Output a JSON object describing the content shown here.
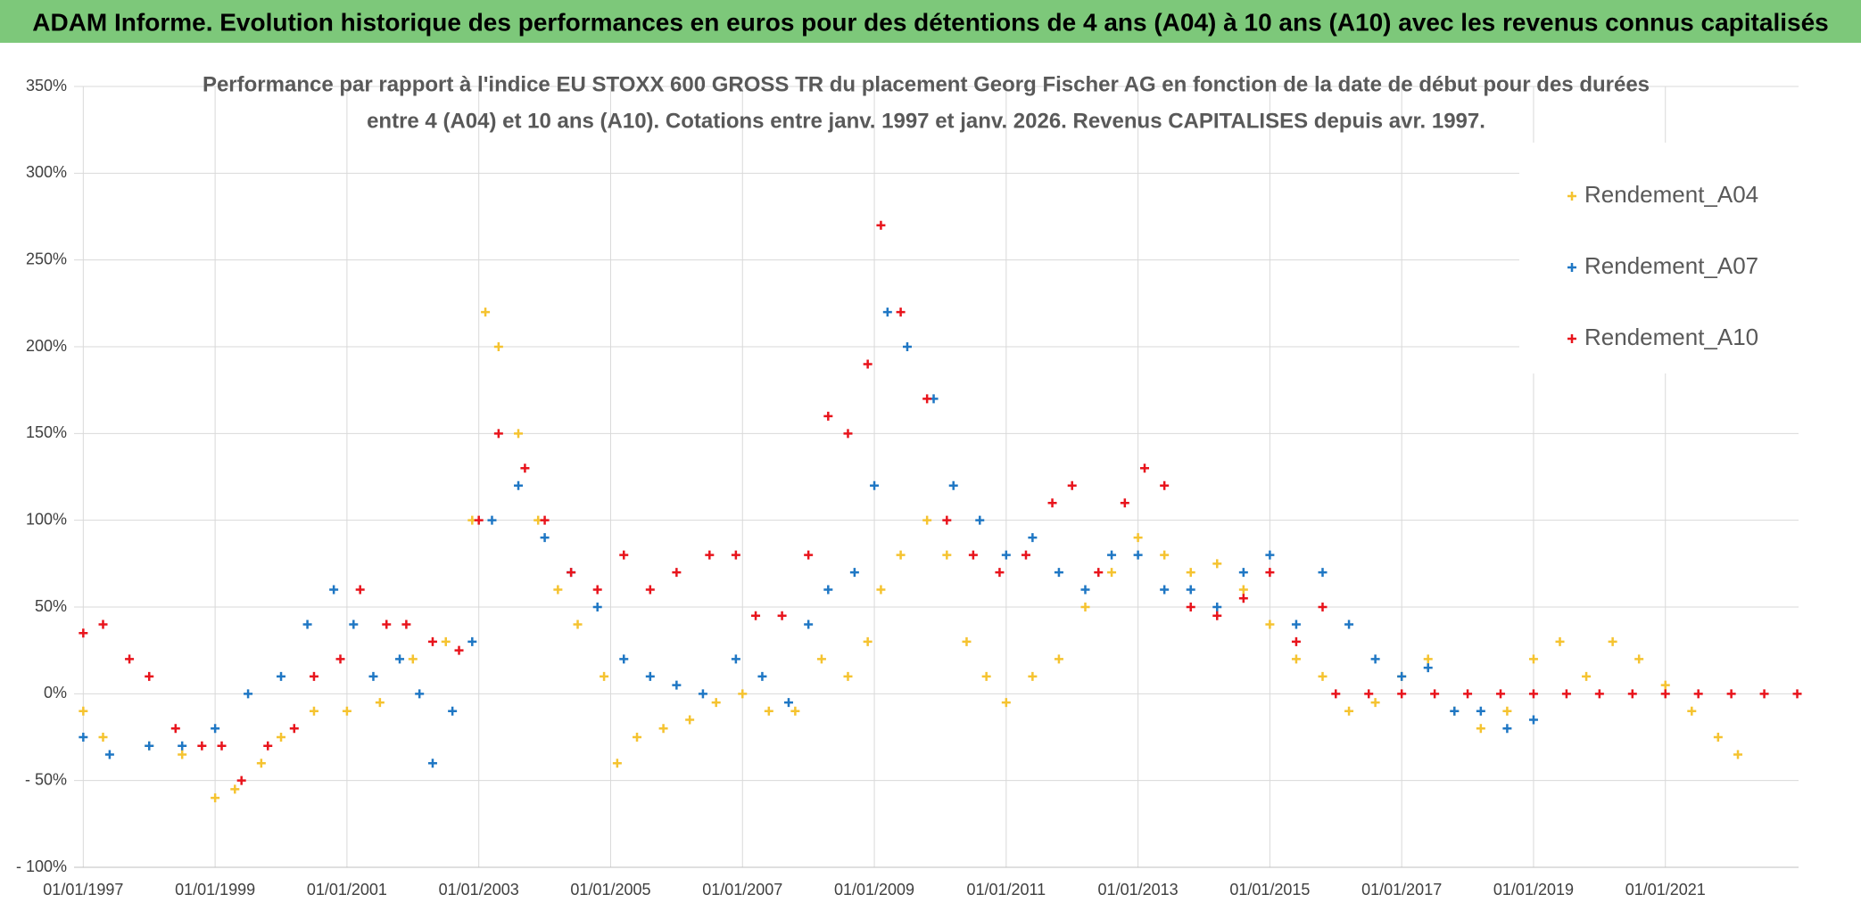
{
  "chart_data": {
    "type": "scatter",
    "banner": "ADAM Informe. Evolution historique des performances en euros pour des détentions de 4 ans (A04) à 10 ans (A10) avec les revenus connus capitalisés",
    "title": [
      "Performance par rapport à l'indice EU STOXX 600 GROSS TR  du placement Georg Fischer AG en fonction de la date de début pour des durées",
      "entre 4 (A04) et 10 ans (A10). Cotations entre janv. 1997 et janv. 2026. Revenus CAPITALISES depuis avr. 1997."
    ],
    "xlim": [
      1996.86,
      2023.02
    ],
    "xticks": [
      {
        "value": 1997,
        "label": "01/01/1997"
      },
      {
        "value": 1999,
        "label": "01/01/1999"
      },
      {
        "value": 2001,
        "label": "01/01/2001"
      },
      {
        "value": 2003,
        "label": "01/01/2003"
      },
      {
        "value": 2005,
        "label": "01/01/2005"
      },
      {
        "value": 2007,
        "label": "01/01/2007"
      },
      {
        "value": 2009,
        "label": "01/01/2009"
      },
      {
        "value": 2011,
        "label": "01/01/2011"
      },
      {
        "value": 2013,
        "label": "01/01/2013"
      },
      {
        "value": 2015,
        "label": "01/01/2015"
      },
      {
        "value": 2017,
        "label": "01/01/2017"
      },
      {
        "value": 2019,
        "label": "01/01/2019"
      },
      {
        "value": 2021,
        "label": "01/01/2021"
      }
    ],
    "ylim": [
      -100,
      350
    ],
    "yticks": [
      {
        "value": -100,
        "label": "- 100%"
      },
      {
        "value": -50,
        "label": "- 50%"
      },
      {
        "value": 0,
        "label": "0%"
      },
      {
        "value": 50,
        "label": "50%"
      },
      {
        "value": 100,
        "label": "100%"
      },
      {
        "value": 150,
        "label": "150%"
      },
      {
        "value": 200,
        "label": "200%"
      },
      {
        "value": 250,
        "label": "250%"
      },
      {
        "value": 300,
        "label": "300%"
      },
      {
        "value": 350,
        "label": "350%"
      }
    ],
    "grid": true,
    "legend": "upper right",
    "series": [
      {
        "name": "Rendement_A04",
        "color": "#f5c330",
        "x": [
          1997,
          1997.3,
          1998,
          1998.5,
          1999,
          1999.3,
          1999.7,
          2000,
          2000.5,
          2001,
          2001.5,
          2002,
          2002.5,
          2002.9,
          2003.1,
          2003.3,
          2003.6,
          2003.9,
          2004.2,
          2004.5,
          2004.9,
          2005.1,
          2005.4,
          2005.8,
          2006.2,
          2006.6,
          2007,
          2007.4,
          2007.8,
          2008.2,
          2008.6,
          2008.9,
          2009.1,
          2009.4,
          2009.8,
          2010.1,
          2010.4,
          2010.7,
          2011,
          2011.4,
          2011.8,
          2012.2,
          2012.6,
          2013,
          2013.4,
          2013.8,
          2014.2,
          2014.6,
          2015,
          2015.4,
          2015.8,
          2016.2,
          2016.6,
          2017,
          2017.4,
          2017.8,
          2018.2,
          2018.6,
          2019,
          2019.4,
          2019.8,
          2020.2,
          2020.6,
          2021,
          2021.4,
          2021.8,
          2022.1
        ],
        "values": [
          -10,
          -25,
          -30,
          -35,
          -60,
          -55,
          -40,
          -25,
          -10,
          -10,
          -5,
          20,
          30,
          100,
          220,
          200,
          150,
          100,
          60,
          40,
          10,
          -40,
          -25,
          -20,
          -15,
          -5,
          0,
          -10,
          -10,
          20,
          10,
          30,
          60,
          80,
          100,
          80,
          30,
          10,
          -5,
          10,
          20,
          50,
          70,
          90,
          80,
          70,
          75,
          60,
          40,
          20,
          10,
          -10,
          -5,
          10,
          20,
          -10,
          -20,
          -10,
          20,
          30,
          10,
          30,
          20,
          5,
          -10,
          -25,
          -35
        ]
      },
      {
        "name": "Rendement_A07",
        "color": "#1f77c4",
        "x": [
          1997,
          1997.4,
          1998,
          1998.5,
          1999,
          1999.5,
          2000,
          2000.4,
          2000.8,
          2001.1,
          2001.4,
          2001.8,
          2002.1,
          2002.3,
          2002.6,
          2002.9,
          2003.2,
          2003.6,
          2004,
          2004.4,
          2004.8,
          2005.2,
          2005.6,
          2006,
          2006.4,
          2006.9,
          2007.3,
          2007.7,
          2008,
          2008.3,
          2008.7,
          2009,
          2009.2,
          2009.5,
          2009.9,
          2010.2,
          2010.6,
          2011,
          2011.4,
          2011.8,
          2012.2,
          2012.6,
          2013,
          2013.4,
          2013.8,
          2014.2,
          2014.6,
          2015,
          2015.4,
          2015.8,
          2016.2,
          2016.6,
          2017,
          2017.4,
          2017.8,
          2018.2,
          2018.6,
          2019
        ],
        "values": [
          -25,
          -35,
          -30,
          -30,
          -20,
          0,
          10,
          40,
          60,
          40,
          10,
          20,
          0,
          -40,
          -10,
          30,
          100,
          120,
          90,
          70,
          50,
          20,
          10,
          5,
          0,
          20,
          10,
          -5,
          40,
          60,
          70,
          120,
          220,
          200,
          170,
          120,
          100,
          80,
          90,
          70,
          60,
          80,
          80,
          60,
          60,
          50,
          70,
          80,
          40,
          70,
          40,
          20,
          10,
          15,
          -10,
          -10,
          -20,
          -15
        ]
      },
      {
        "name": "Rendement_A10",
        "color": "#e8141c",
        "x": [
          1997,
          1997.3,
          1997.7,
          1998,
          1998.4,
          1998.8,
          1999.1,
          1999.4,
          1999.8,
          2000.2,
          2000.5,
          2000.9,
          2001.2,
          2001.6,
          2001.9,
          2002.3,
          2002.7,
          2003,
          2003.3,
          2003.7,
          2004,
          2004.4,
          2004.8,
          2005.2,
          2005.6,
          2006,
          2006.5,
          2006.9,
          2007.2,
          2007.6,
          2008,
          2008.3,
          2008.6,
          2008.9,
          2009.1,
          2009.4,
          2009.8,
          2010.1,
          2010.5,
          2010.9,
          2011.3,
          2011.7,
          2012,
          2012.4,
          2012.8,
          2013.1,
          2013.4,
          2013.8,
          2014.2,
          2014.6,
          2015,
          2015.4,
          2015.8,
          2016,
          2016.5,
          2017,
          2017.5,
          2018,
          2018.5,
          2019,
          2019.5,
          2020,
          2020.5,
          2021,
          2021.5,
          2022,
          2022.5,
          2023
        ],
        "values": [
          35,
          40,
          20,
          10,
          -20,
          -30,
          -30,
          -50,
          -30,
          -20,
          10,
          20,
          60,
          40,
          40,
          30,
          25,
          100,
          150,
          130,
          100,
          70,
          60,
          80,
          60,
          70,
          80,
          80,
          45,
          45,
          80,
          160,
          150,
          190,
          270,
          220,
          170,
          100,
          80,
          70,
          80,
          110,
          120,
          70,
          110,
          130,
          120,
          50,
          45,
          55,
          70,
          30,
          50,
          0,
          0,
          0,
          0,
          0,
          0,
          0,
          0,
          0,
          0,
          0,
          0,
          0,
          0,
          0
        ]
      }
    ]
  }
}
